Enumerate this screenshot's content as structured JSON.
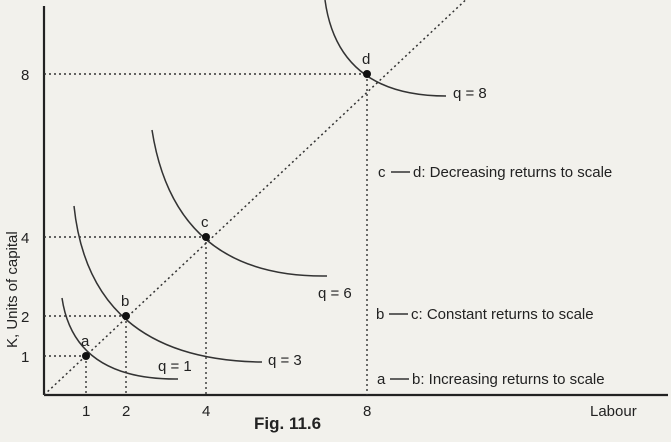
{
  "figure": {
    "caption": "Fig. 11.6",
    "x_axis_label": "Labour",
    "y_axis_label": "K, Units of capital"
  },
  "chart_data": {
    "type": "diagram",
    "x_ticks": [
      1,
      2,
      4,
      8
    ],
    "y_ticks": [
      1,
      2,
      4,
      8
    ],
    "points": [
      {
        "label": "a",
        "x": 1,
        "y": 1
      },
      {
        "label": "b",
        "x": 2,
        "y": 2
      },
      {
        "label": "c",
        "x": 4,
        "y": 4
      },
      {
        "label": "d",
        "x": 8,
        "y": 8
      }
    ],
    "isoquants": [
      {
        "label": "q = 1",
        "through": "a"
      },
      {
        "label": "q = 3",
        "through": "b"
      },
      {
        "label": "q = 6",
        "through": "c"
      },
      {
        "label": "q = 8",
        "through": "d"
      }
    ],
    "annotations": [
      {
        "from": "c",
        "text": "d: Decreasing returns to scale"
      },
      {
        "from": "b",
        "text": "c: Constant returns to scale"
      },
      {
        "from": "a",
        "text": "b: Increasing returns to scale"
      }
    ]
  }
}
